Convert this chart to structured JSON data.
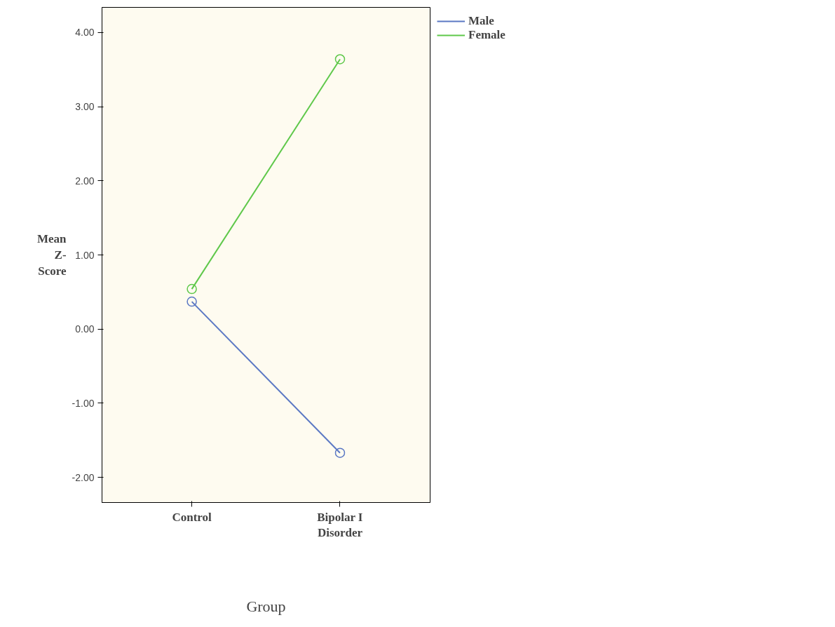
{
  "chart_data": {
    "type": "line",
    "xlabel": "Group",
    "ylabel": "Mean Z-Score",
    "categories": [
      "Control",
      "Bipolar I Disorder"
    ],
    "series": [
      {
        "name": "Male",
        "color": "#5b78c4",
        "values": [
          0.37,
          -1.67
        ]
      },
      {
        "name": "Female",
        "color": "#5fc84a",
        "values": [
          0.54,
          3.64
        ]
      }
    ],
    "ylim": [
      -2.34,
      4.34
    ],
    "yticks": [
      {
        "value": -2,
        "label": "-2.00"
      },
      {
        "value": -1,
        "label": "-1.00"
      },
      {
        "value": 0,
        "label": "0.00"
      },
      {
        "value": 1,
        "label": "1.00"
      },
      {
        "value": 2,
        "label": "2.00"
      },
      {
        "value": 3,
        "label": "3.00"
      },
      {
        "value": 4,
        "label": "4.00"
      }
    ],
    "grid": false,
    "legend": "top right",
    "marker": "circle",
    "line_style": "solid"
  }
}
